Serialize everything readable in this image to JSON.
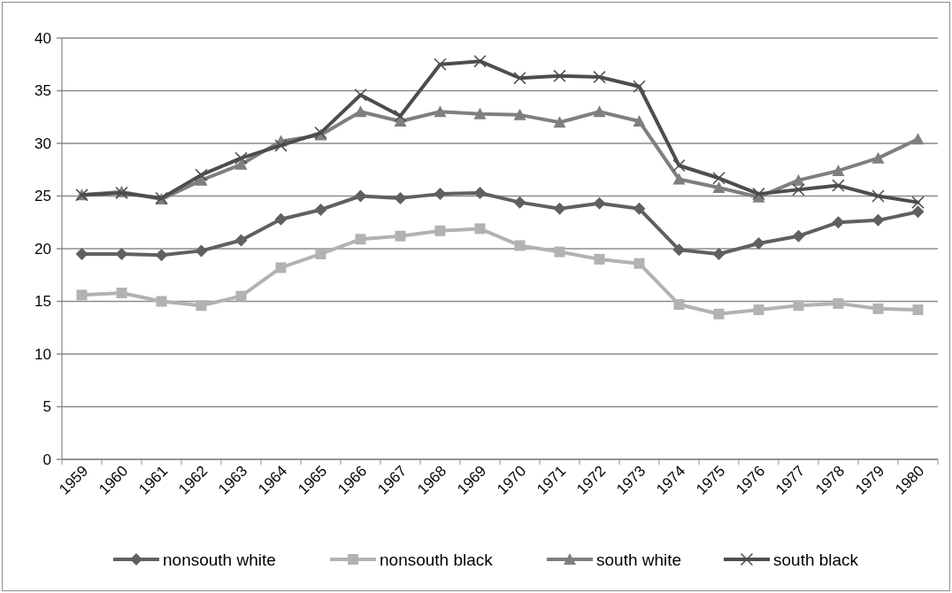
{
  "chart_data": {
    "type": "line",
    "categories": [
      "1959",
      "1960",
      "1961",
      "1962",
      "1963",
      "1964",
      "1965",
      "1966",
      "1967",
      "1968",
      "1969",
      "1970",
      "1971",
      "1972",
      "1973",
      "1974",
      "1975",
      "1976",
      "1977",
      "1978",
      "1979",
      "1980"
    ],
    "series": [
      {
        "name": "nonsouth white",
        "color": "#606060",
        "marker": "diamond",
        "values": [
          19.5,
          19.5,
          19.4,
          19.8,
          20.8,
          22.8,
          23.7,
          25.0,
          24.8,
          25.2,
          25.3,
          24.4,
          23.8,
          24.3,
          23.8,
          19.9,
          19.5,
          20.5,
          21.2,
          22.5,
          22.7,
          23.5
        ]
      },
      {
        "name": "nonsouth black",
        "color": "#b2b2b2",
        "marker": "square",
        "values": [
          15.6,
          15.8,
          15.0,
          14.6,
          15.5,
          18.2,
          19.5,
          20.9,
          21.2,
          21.7,
          21.9,
          20.3,
          19.7,
          19.0,
          18.6,
          14.7,
          13.8,
          14.2,
          14.6,
          14.8,
          14.3,
          14.2
        ]
      },
      {
        "name": "south white",
        "color": "#7f7f7f",
        "marker": "triangle",
        "values": [
          25.1,
          25.4,
          24.7,
          26.5,
          28.0,
          30.2,
          30.8,
          33.0,
          32.1,
          33.0,
          32.8,
          32.7,
          32.0,
          33.0,
          32.1,
          26.6,
          25.8,
          24.9,
          26.5,
          27.4,
          28.6,
          30.4
        ]
      },
      {
        "name": "south black",
        "color": "#4d4d4d",
        "marker": "cross",
        "values": [
          25.1,
          25.3,
          24.8,
          27.0,
          28.6,
          29.8,
          31.0,
          34.6,
          32.6,
          37.5,
          37.8,
          36.2,
          36.4,
          36.3,
          35.4,
          27.9,
          26.7,
          25.2,
          25.6,
          26.0,
          25.0,
          24.4
        ]
      }
    ],
    "ylim": [
      0,
      40
    ],
    "yticks": [
      0,
      5,
      10,
      15,
      20,
      25,
      30,
      35,
      40
    ],
    "grid": "y",
    "legend": "bottom"
  }
}
